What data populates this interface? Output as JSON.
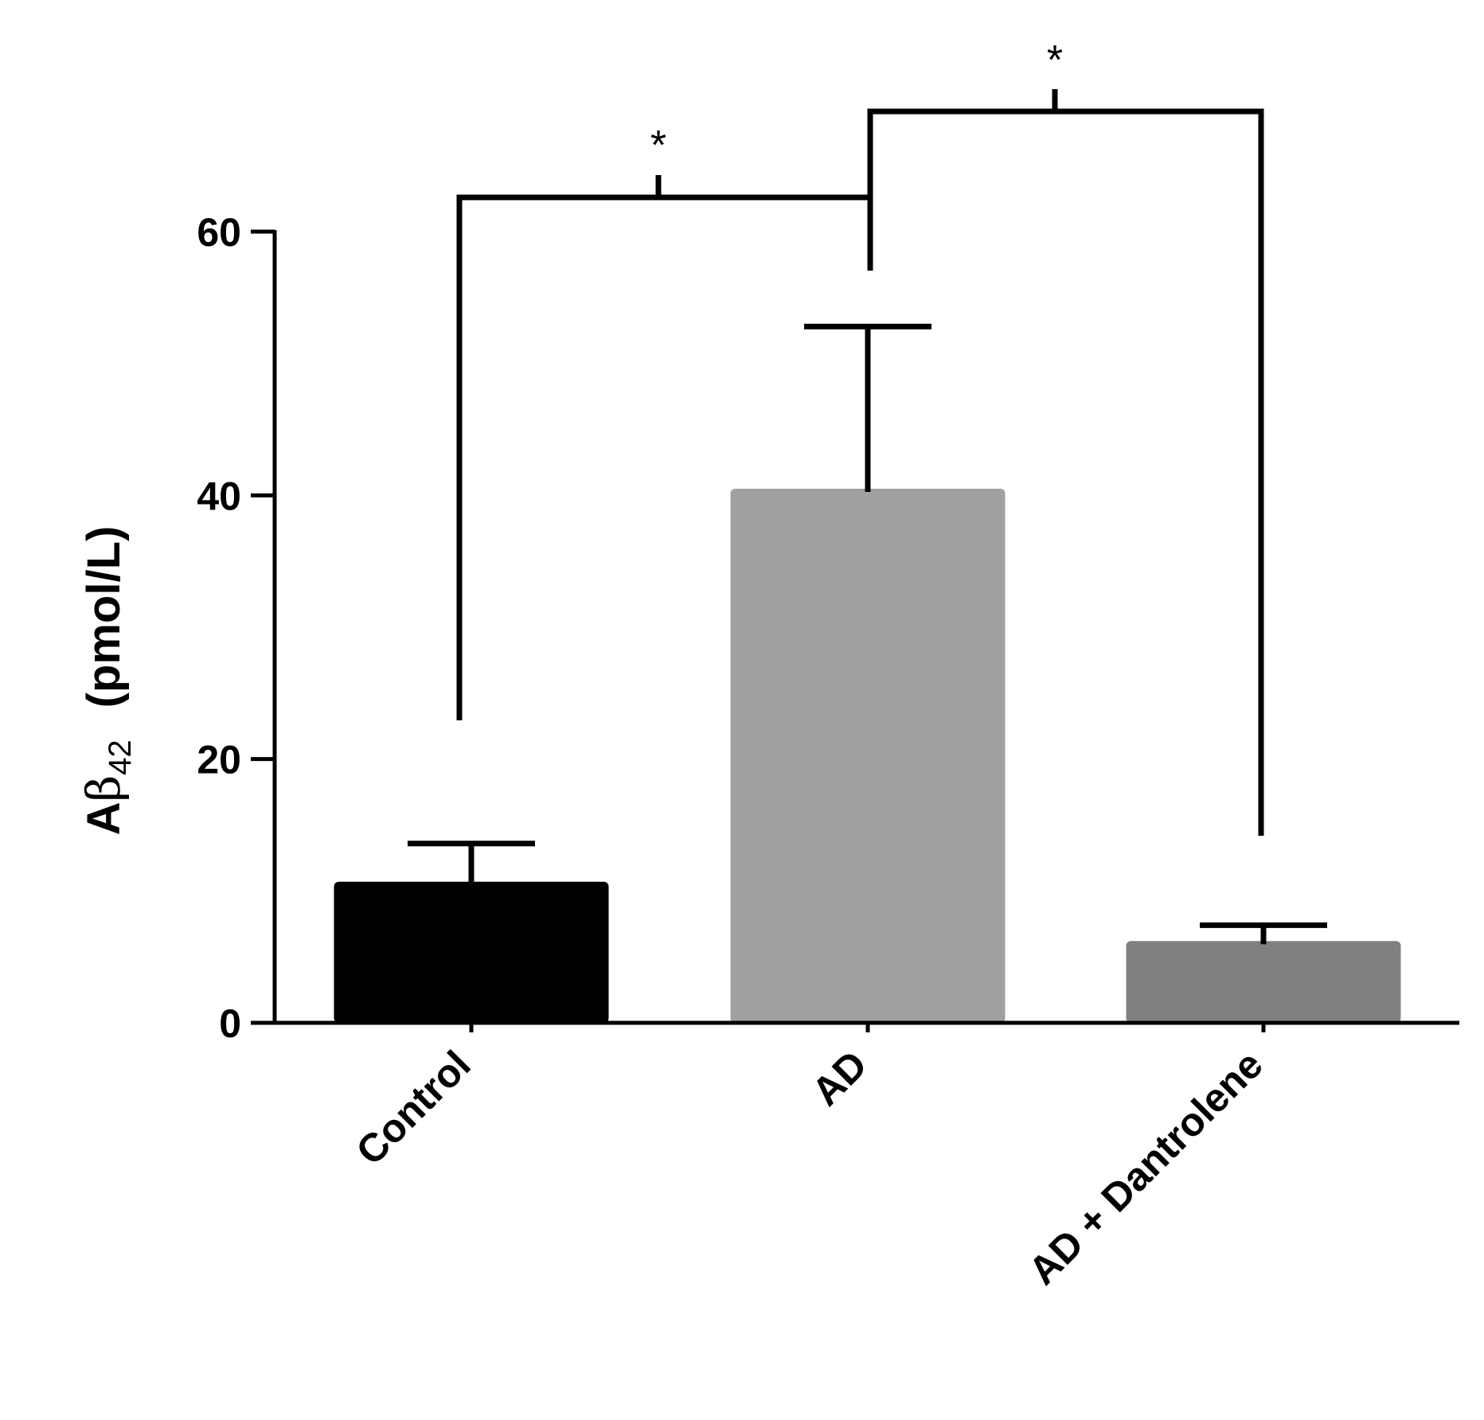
{
  "chart_data": {
    "type": "bar",
    "categories": [
      "Control",
      "AD",
      "AD + Dantrolene"
    ],
    "values": [
      10.7,
      40.5,
      6.2
    ],
    "errors": [
      2.9,
      12.3,
      1.2
    ],
    "colors": [
      "#000000",
      "#a0a0a0",
      "#808080"
    ],
    "ylabel": {
      "prefix": "A",
      "greek": "β",
      "subscript": "42",
      "unit": "(pmol/L)"
    },
    "xlabel": "",
    "title": "",
    "ylim": [
      0,
      60
    ],
    "yticks": [
      "0",
      "20",
      "40",
      "60"
    ],
    "grid": false,
    "significance": [
      {
        "pair": [
          0,
          1
        ],
        "label": "*"
      },
      {
        "pair": [
          1,
          2
        ],
        "label": "*"
      }
    ]
  }
}
